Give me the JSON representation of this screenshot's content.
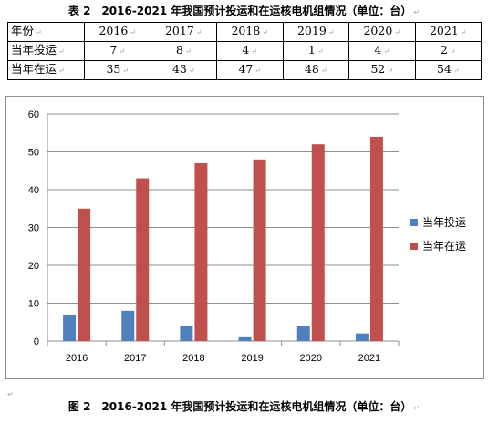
{
  "table": {
    "title": "表 2　2016-2021 年我国预计投运和在运核电机组情况（单位：台）",
    "header": [
      "年份",
      "2016",
      "2017",
      "2018",
      "2019",
      "2020",
      "2021"
    ],
    "rows": [
      [
        "当年投运",
        "7",
        "8",
        "4",
        "1",
        "4",
        "2"
      ],
      [
        "当年在运",
        "35",
        "43",
        "47",
        "48",
        "52",
        "54"
      ]
    ]
  },
  "chart_data": {
    "type": "bar",
    "categories": [
      "2016",
      "2017",
      "2018",
      "2019",
      "2020",
      "2021"
    ],
    "series": [
      {
        "name": "当年投运",
        "values": [
          7,
          8,
          4,
          1,
          4,
          2
        ],
        "color": "#4f81bd"
      },
      {
        "name": "当年在运",
        "values": [
          35,
          43,
          47,
          48,
          52,
          54
        ],
        "color": "#c0504d"
      }
    ],
    "ylim": [
      0,
      60
    ],
    "yticks": [
      0,
      10,
      20,
      30,
      40,
      50,
      60
    ],
    "grid": true,
    "legend": "right"
  },
  "figure": {
    "caption": "图 2　2016-2021 年我国预计投运和在运核电机组情况（单位：台）"
  },
  "marks": {
    "paragraph": "↵",
    "cell": "↵"
  }
}
